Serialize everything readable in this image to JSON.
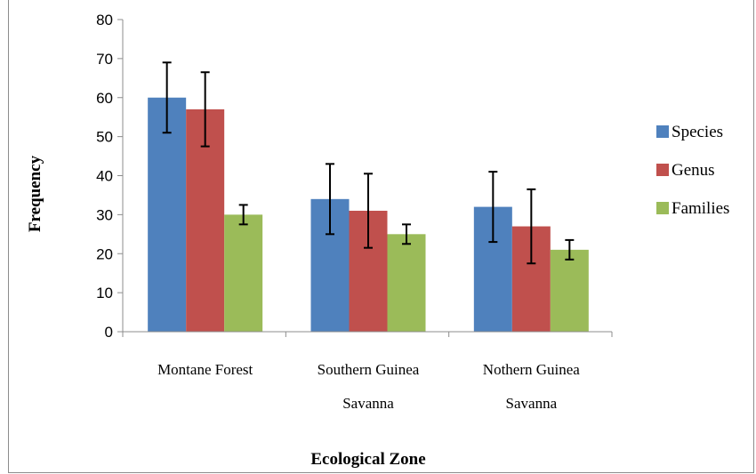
{
  "chart_data": {
    "type": "bar",
    "categories": [
      [
        "Montane Forest"
      ],
      [
        "Southern Guinea",
        "Savanna"
      ],
      [
        "Nothern Guinea",
        "Savanna"
      ]
    ],
    "series": [
      {
        "name": "Species",
        "color": "#4f81bd",
        "values": [
          60,
          34,
          32
        ],
        "errors": [
          9,
          9,
          9
        ]
      },
      {
        "name": "Genus",
        "color": "#c0504d",
        "values": [
          57,
          31,
          27
        ],
        "errors": [
          9.5,
          9.5,
          9.5
        ]
      },
      {
        "name": "Families",
        "color": "#9bbb59",
        "values": [
          30,
          25,
          21
        ],
        "errors": [
          2.5,
          2.5,
          2.5
        ]
      }
    ],
    "xlabel": "Ecological Zone",
    "ylabel": "Frequency",
    "ylim": [
      0,
      80
    ],
    "yticks": [
      0,
      10,
      20,
      30,
      40,
      50,
      60,
      70,
      80
    ],
    "grid": false,
    "legend_position": "right"
  }
}
